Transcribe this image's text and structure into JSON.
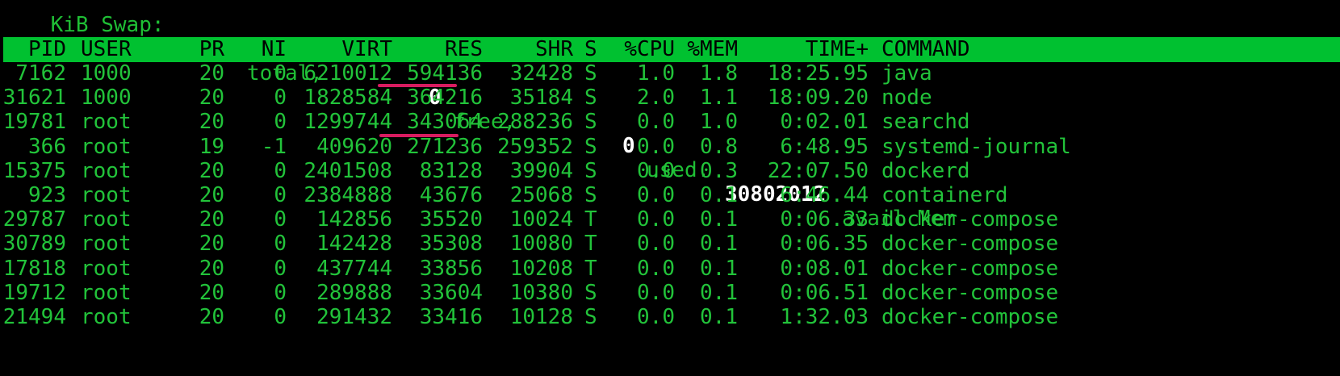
{
  "swap_line": {
    "prefix": "KiB Swap:",
    "total_value": "0",
    "total_label": "total,",
    "free_value": "0",
    "free_label": "free,",
    "used_value": "0",
    "used_label": "used.",
    "avail_value": "30802012",
    "avail_label": "avail Mem"
  },
  "columns": {
    "pid": "PID",
    "user": "USER",
    "pr": "PR",
    "ni": "NI",
    "virt": "VIRT",
    "res": "RES",
    "shr": "SHR",
    "s": "S",
    "cpu": "%CPU",
    "mem": "%MEM",
    "time": "TIME+",
    "command": "COMMAND"
  },
  "processes": [
    {
      "pid": "7162",
      "user": "1000",
      "pr": "20",
      "ni": "0",
      "virt": "6210012",
      "res": "594136",
      "shr": "32428",
      "s": "S",
      "cpu": "1.0",
      "mem": "1.8",
      "time": "18:25.95",
      "command": "java"
    },
    {
      "pid": "31621",
      "user": "1000",
      "pr": "20",
      "ni": "0",
      "virt": "1828584",
      "res": "364216",
      "shr": "35184",
      "s": "S",
      "cpu": "2.0",
      "mem": "1.1",
      "time": "18:09.20",
      "command": "node"
    },
    {
      "pid": "19781",
      "user": "root",
      "pr": "20",
      "ni": "0",
      "virt": "1299744",
      "res": "343064",
      "shr": "288236",
      "s": "S",
      "cpu": "0.0",
      "mem": "1.0",
      "time": "0:02.01",
      "command": "searchd"
    },
    {
      "pid": "366",
      "user": "root",
      "pr": "19",
      "ni": "-1",
      "virt": "409620",
      "res": "271236",
      "shr": "259352",
      "s": "S",
      "cpu": "0.0",
      "mem": "0.8",
      "time": "6:48.95",
      "command": "systemd-journal"
    },
    {
      "pid": "15375",
      "user": "root",
      "pr": "20",
      "ni": "0",
      "virt": "2401508",
      "res": "83128",
      "shr": "39904",
      "s": "S",
      "cpu": "0.0",
      "mem": "0.3",
      "time": "22:07.50",
      "command": "dockerd"
    },
    {
      "pid": "923",
      "user": "root",
      "pr": "20",
      "ni": "0",
      "virt": "2384888",
      "res": "43676",
      "shr": "25068",
      "s": "S",
      "cpu": "0.0",
      "mem": "0.1",
      "time": "6:46.44",
      "command": "containerd"
    },
    {
      "pid": "29787",
      "user": "root",
      "pr": "20",
      "ni": "0",
      "virt": "142856",
      "res": "35520",
      "shr": "10024",
      "s": "T",
      "cpu": "0.0",
      "mem": "0.1",
      "time": "0:06.33",
      "command": "docker-compose"
    },
    {
      "pid": "30789",
      "user": "root",
      "pr": "20",
      "ni": "0",
      "virt": "142428",
      "res": "35308",
      "shr": "10080",
      "s": "T",
      "cpu": "0.0",
      "mem": "0.1",
      "time": "0:06.35",
      "command": "docker-compose"
    },
    {
      "pid": "17818",
      "user": "root",
      "pr": "20",
      "ni": "0",
      "virt": "437744",
      "res": "33856",
      "shr": "10208",
      "s": "T",
      "cpu": "0.0",
      "mem": "0.1",
      "time": "0:08.01",
      "command": "docker-compose"
    },
    {
      "pid": "19712",
      "user": "root",
      "pr": "20",
      "ni": "0",
      "virt": "289888",
      "res": "33604",
      "shr": "10380",
      "s": "S",
      "cpu": "0.0",
      "mem": "0.1",
      "time": "0:06.51",
      "command": "docker-compose"
    },
    {
      "pid": "21494",
      "user": "root",
      "pr": "20",
      "ni": "0",
      "virt": "291432",
      "res": "33416",
      "shr": "10128",
      "s": "S",
      "cpu": "0.0",
      "mem": "0.1",
      "time": "1:32.03",
      "command": "docker-compose"
    }
  ],
  "colors": {
    "background": "#000000",
    "text_green": "#22c33a",
    "header_bg": "#00c130",
    "annotation_red": "#d81b60"
  }
}
